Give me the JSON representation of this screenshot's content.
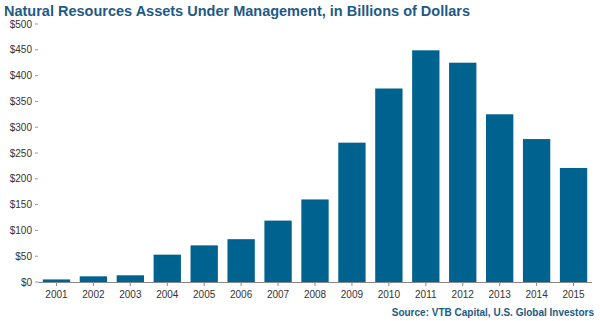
{
  "chart_data": {
    "type": "bar",
    "title": "Natural Resources Assets Under Management, in Billions of Dollars",
    "source": "Source: VTB Capital, U.S. Global Investors",
    "categories": [
      "2001",
      "2002",
      "2003",
      "2004",
      "2005",
      "2006",
      "2007",
      "2008",
      "2009",
      "2010",
      "2011",
      "2012",
      "2013",
      "2014",
      "2015"
    ],
    "values": [
      5,
      11,
      13,
      53,
      71,
      83,
      119,
      160,
      270,
      375,
      449,
      425,
      325,
      277,
      221
    ],
    "color": "#00628e",
    "ylim": [
      0,
      500
    ],
    "yticks": [
      {
        "value": 0,
        "label": "$0"
      },
      {
        "value": 50,
        "label": "$50"
      },
      {
        "value": 100,
        "label": "$100"
      },
      {
        "value": 150,
        "label": "$150"
      },
      {
        "value": 200,
        "label": "$200"
      },
      {
        "value": 250,
        "label": "$250"
      },
      {
        "value": 300,
        "label": "$300"
      },
      {
        "value": 350,
        "label": "$350"
      },
      {
        "value": 400,
        "label": "$400"
      },
      {
        "value": 450,
        "label": "$450"
      },
      {
        "value": 500,
        "label": "$500"
      }
    ],
    "grid": false
  }
}
